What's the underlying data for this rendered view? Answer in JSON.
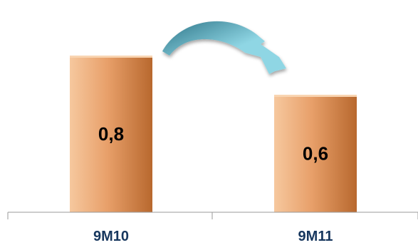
{
  "chart_data": {
    "type": "bar",
    "categories": [
      "9M10",
      "9M11"
    ],
    "values": [
      0.8,
      0.6
    ],
    "data_labels": [
      "0,8",
      "0,6"
    ],
    "title": "",
    "xlabel": "",
    "ylabel": "",
    "ylim": [
      0,
      1.0
    ],
    "grid": false,
    "legend": "none",
    "colors": {
      "bar_light": "#f6c89e",
      "bar_mid": "#e8a06a",
      "bar_dark": "#b8682e",
      "bar_top": "#f9d5b2",
      "arrow_dark": "#2e7588",
      "arrow_light": "#8fd6e4",
      "axis": "#9a9a9a",
      "category_text": "#17375e",
      "label_text": "#000000"
    },
    "annotations": [
      {
        "type": "arrow",
        "icon": "curved-arrow-icon",
        "from": "9M10",
        "to": "9M11",
        "meaning": "decrease"
      }
    ]
  }
}
